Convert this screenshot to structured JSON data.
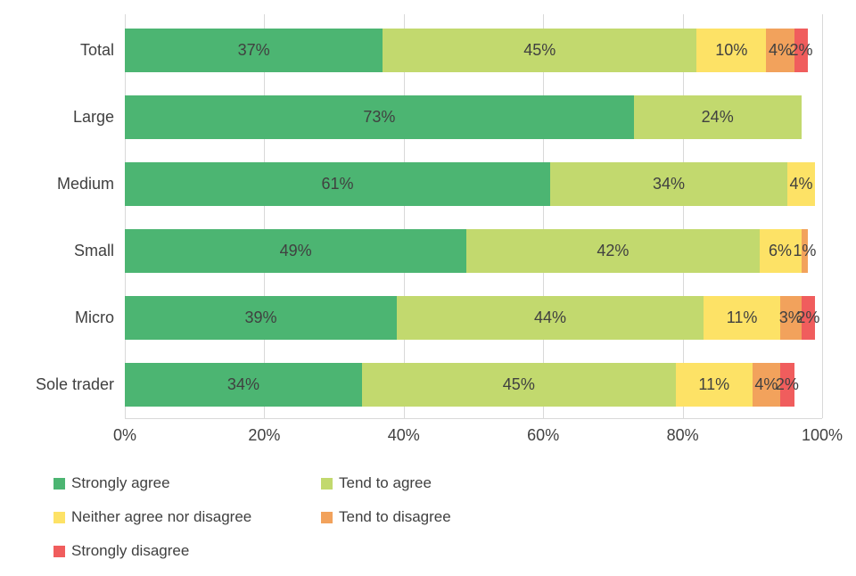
{
  "chart_data": {
    "type": "bar",
    "orientation": "horizontal",
    "stacked": true,
    "categories": [
      "Total",
      "Large",
      "Medium",
      "Small",
      "Micro",
      "Sole trader"
    ],
    "series": [
      {
        "name": "Strongly agree",
        "color": "#4CB572",
        "values": [
          37,
          73,
          61,
          49,
          39,
          34
        ]
      },
      {
        "name": "Tend to agree",
        "color": "#C2D96E",
        "values": [
          45,
          24,
          34,
          42,
          44,
          45
        ]
      },
      {
        "name": "Neither agree nor disagree",
        "color": "#FDE266",
        "values": [
          10,
          0,
          4,
          6,
          11,
          11
        ]
      },
      {
        "name": "Tend to disagree",
        "color": "#F2A25C",
        "values": [
          4,
          0,
          0,
          1,
          3,
          4
        ]
      },
      {
        "name": "Strongly disagree",
        "color": "#F05D5D",
        "values": [
          2,
          0,
          0,
          0,
          2,
          2
        ]
      }
    ],
    "value_suffix": "%",
    "xlim": [
      0,
      100
    ],
    "xticks": [
      0,
      20,
      40,
      60,
      80,
      100
    ],
    "xtick_labels": [
      "0%",
      "20%",
      "40%",
      "60%",
      "80%",
      "100%"
    ],
    "grid": true,
    "gridline_color": "#d9d9d9",
    "text_color": "#404040",
    "legend_position": "bottom"
  }
}
